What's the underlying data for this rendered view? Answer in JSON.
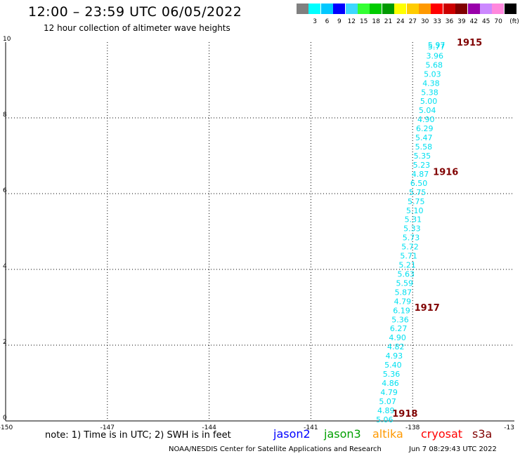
{
  "header": {
    "title": "12:00 – 23:59 UTC 06/05/2022",
    "subtitle": "12 hour collection of altimeter wave heights"
  },
  "color_scale": {
    "unit": "(ft)",
    "steps": [
      {
        "color": "#808080",
        "label": ""
      },
      {
        "color": "#00ffff",
        "label": "3"
      },
      {
        "color": "#00c8ff",
        "label": "6"
      },
      {
        "color": "#0000ff",
        "label": "9"
      },
      {
        "color": "#3dd7ff",
        "label": "12"
      },
      {
        "color": "#33ff33",
        "label": "15"
      },
      {
        "color": "#00cc00",
        "label": "18"
      },
      {
        "color": "#009900",
        "label": "21"
      },
      {
        "color": "#ffff00",
        "label": "24"
      },
      {
        "color": "#ffcc00",
        "label": "27"
      },
      {
        "color": "#ff9900",
        "label": "30"
      },
      {
        "color": "#ff0000",
        "label": "33"
      },
      {
        "color": "#cc0000",
        "label": "36"
      },
      {
        "color": "#800000",
        "label": "39"
      },
      {
        "color": "#9900aa",
        "label": "42"
      },
      {
        "color": "#cc88ff",
        "label": "45"
      },
      {
        "color": "#ff88dd",
        "label": "70"
      },
      {
        "color": "#000000",
        "label": ""
      }
    ]
  },
  "chart_data": {
    "type": "scatter",
    "x_ticks": [
      "-150",
      "-147",
      "-144",
      "-141",
      "-138",
      "-13"
    ],
    "y_ticks": [
      "0",
      "2",
      "4",
      "6",
      "8",
      "10"
    ],
    "xlim": [
      -150,
      -135
    ],
    "ylim": [
      0,
      10
    ],
    "grid": true,
    "point_color": "#00e0f0",
    "marker_color": "#800000",
    "points": [
      {
        "lon": -137.55,
        "lat": 9.93,
        "label": "5.97"
      },
      {
        "lon": -137.55,
        "lat": 9.88,
        "label": "5.77"
      },
      {
        "lon": -137.6,
        "lat": 9.64,
        "label": "3.96"
      },
      {
        "lon": -137.62,
        "lat": 9.4,
        "label": "5.68"
      },
      {
        "lon": -137.67,
        "lat": 9.16,
        "label": "5.03"
      },
      {
        "lon": -137.71,
        "lat": 8.92,
        "label": "4.38"
      },
      {
        "lon": -137.75,
        "lat": 8.68,
        "label": "5.38"
      },
      {
        "lon": -137.78,
        "lat": 8.44,
        "label": "5.00"
      },
      {
        "lon": -137.82,
        "lat": 8.2,
        "label": "5.04"
      },
      {
        "lon": -137.86,
        "lat": 7.96,
        "label": "4.90"
      },
      {
        "lon": -137.9,
        "lat": 7.72,
        "label": "6.29"
      },
      {
        "lon": -137.92,
        "lat": 7.48,
        "label": "5.47"
      },
      {
        "lon": -137.93,
        "lat": 7.24,
        "label": "5.58"
      },
      {
        "lon": -137.97,
        "lat": 7.0,
        "label": "5.35"
      },
      {
        "lon": -137.99,
        "lat": 6.76,
        "label": "5.23"
      },
      {
        "lon": -138.03,
        "lat": 6.52,
        "label": "4.87"
      },
      {
        "lon": -138.07,
        "lat": 6.28,
        "label": "6.50"
      },
      {
        "lon": -138.11,
        "lat": 6.04,
        "label": "5.75"
      },
      {
        "lon": -138.15,
        "lat": 5.8,
        "label": "5.75"
      },
      {
        "lon": -138.19,
        "lat": 5.56,
        "label": "5.10"
      },
      {
        "lon": -138.24,
        "lat": 5.32,
        "label": "5.31"
      },
      {
        "lon": -138.27,
        "lat": 5.08,
        "label": "5.33"
      },
      {
        "lon": -138.3,
        "lat": 4.84,
        "label": "5.73"
      },
      {
        "lon": -138.33,
        "lat": 4.6,
        "label": "5.72"
      },
      {
        "lon": -138.37,
        "lat": 4.36,
        "label": "5.71"
      },
      {
        "lon": -138.41,
        "lat": 4.12,
        "label": "5.21"
      },
      {
        "lon": -138.45,
        "lat": 3.88,
        "label": "5.63"
      },
      {
        "lon": -138.49,
        "lat": 3.64,
        "label": "5.59"
      },
      {
        "lon": -138.53,
        "lat": 3.4,
        "label": "5.87"
      },
      {
        "lon": -138.55,
        "lat": 3.16,
        "label": "4.79"
      },
      {
        "lon": -138.58,
        "lat": 2.92,
        "label": "6.19"
      },
      {
        "lon": -138.62,
        "lat": 2.68,
        "label": "5.36"
      },
      {
        "lon": -138.67,
        "lat": 2.44,
        "label": "6.27"
      },
      {
        "lon": -138.7,
        "lat": 2.2,
        "label": "4.90"
      },
      {
        "lon": -138.75,
        "lat": 1.96,
        "label": "4.82"
      },
      {
        "lon": -138.8,
        "lat": 1.72,
        "label": "4.93"
      },
      {
        "lon": -138.83,
        "lat": 1.48,
        "label": "5.40"
      },
      {
        "lon": -138.88,
        "lat": 1.24,
        "label": "5.36"
      },
      {
        "lon": -138.91,
        "lat": 1.0,
        "label": "4.86"
      },
      {
        "lon": -138.95,
        "lat": 0.76,
        "label": "4.79"
      },
      {
        "lon": -138.99,
        "lat": 0.52,
        "label": "5.07"
      },
      {
        "lon": -139.04,
        "lat": 0.28,
        "label": "4.89"
      },
      {
        "lon": -139.08,
        "lat": 0.04,
        "label": "5.06"
      }
    ],
    "time_markers": [
      {
        "lon": -136.7,
        "lat": 10.0,
        "label": "1915"
      },
      {
        "lon": -137.4,
        "lat": 6.58,
        "label": "1916"
      },
      {
        "lon": -137.95,
        "lat": 3.0,
        "label": "1917"
      },
      {
        "lon": -138.6,
        "lat": 0.2,
        "label": "1918"
      }
    ]
  },
  "footer": {
    "note": "note: 1) Time is in UTC; 2) SWH is in feet",
    "satellites": [
      {
        "name": "jason2",
        "color": "#0000ff"
      },
      {
        "name": "jason3",
        "color": "#00a000"
      },
      {
        "name": "altika",
        "color": "#ff9900"
      },
      {
        "name": "cryosat",
        "color": "#ff0000"
      },
      {
        "name": "s3a",
        "color": "#800000"
      }
    ],
    "credit": "NOAA/NESDIS Center for Satellite Applications and Research",
    "timestamp": "Jun  7 08:29:43 UTC 2022"
  }
}
